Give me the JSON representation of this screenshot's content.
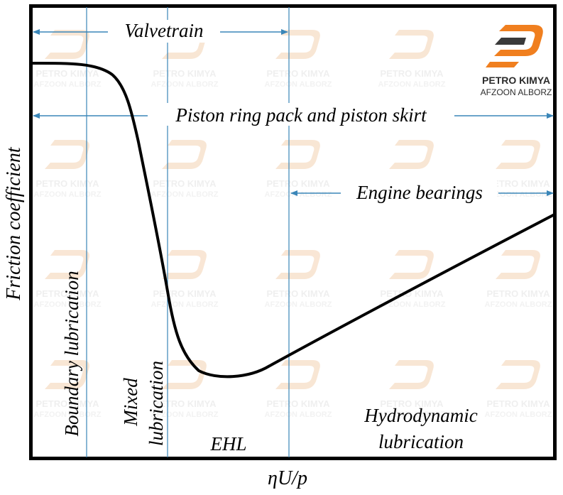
{
  "diagram": {
    "y_axis_label": "Friction coefficient",
    "x_axis_label": "ηU/p",
    "ranges": [
      {
        "label": "Valvetrain"
      },
      {
        "label": "Piston ring pack and piston skirt"
      },
      {
        "label": "Engine bearings"
      }
    ],
    "regimes": {
      "boundary": "Boundary lubrication",
      "mixed_line1": "Mixed",
      "mixed_line2": "lubrication",
      "ehl": "EHL",
      "hydro_line1": "Hydrodynamic",
      "hydro_line2": "lubrication"
    },
    "colors": {
      "curve": "#000000",
      "divider": "#3a86b8",
      "arrow": "#3a86b8",
      "frame": "#000000"
    }
  },
  "branding": {
    "name": "PETRO KIMYA",
    "subtitle": "AFZOON ALBORZ",
    "logo_colors": {
      "orange": "#f07f1f",
      "dark": "#3a3a3a"
    },
    "watermark_color": "#f4d2b2"
  }
}
